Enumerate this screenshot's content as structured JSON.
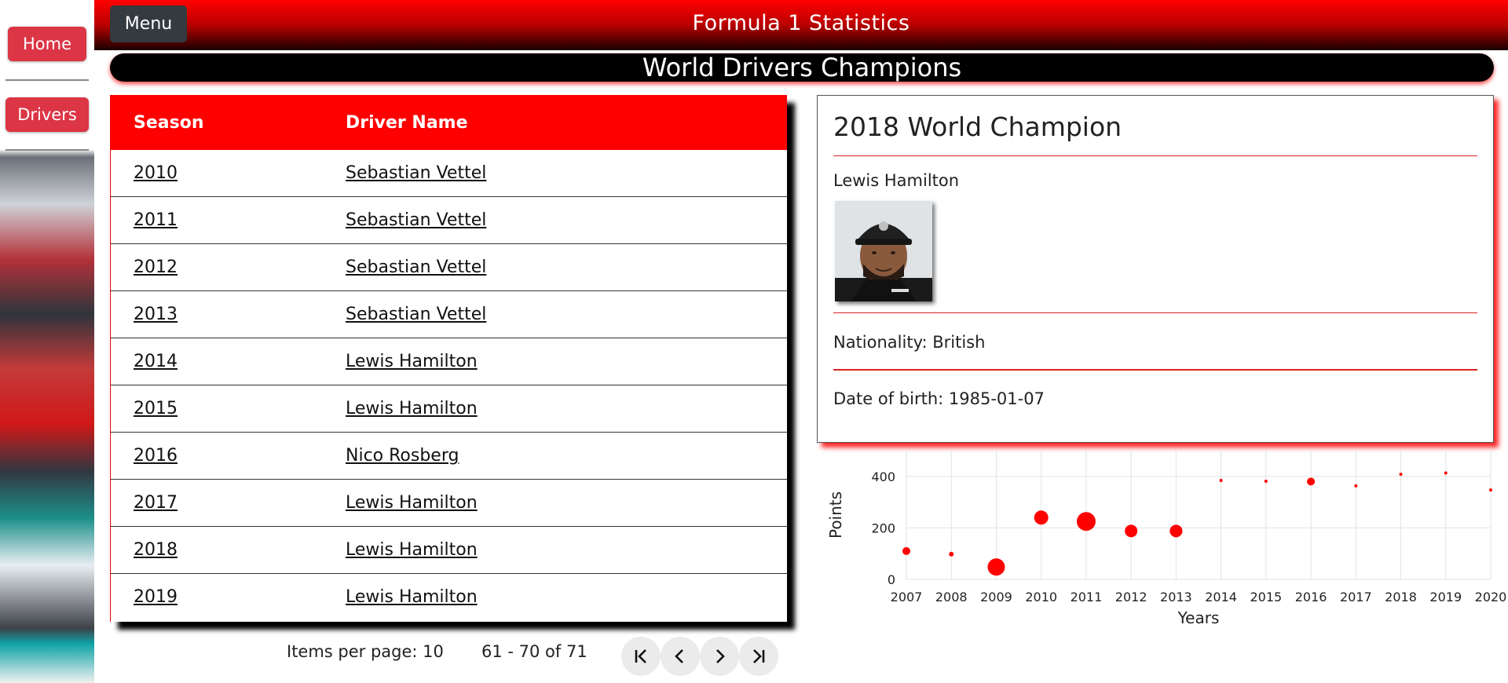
{
  "sidebar": {
    "items": [
      {
        "label": "Home"
      },
      {
        "label": "Drivers"
      }
    ]
  },
  "header": {
    "menu_label": "Menu",
    "title": "Formula 1 Statistics"
  },
  "page_title": "World Drivers Champions",
  "table": {
    "headers": [
      "Season",
      "Driver Name"
    ],
    "rows": [
      {
        "season": "2010",
        "driver": "Sebastian Vettel"
      },
      {
        "season": "2011",
        "driver": "Sebastian Vettel"
      },
      {
        "season": "2012",
        "driver": "Sebastian Vettel"
      },
      {
        "season": "2013",
        "driver": "Sebastian Vettel"
      },
      {
        "season": "2014",
        "driver": "Lewis Hamilton"
      },
      {
        "season": "2015",
        "driver": "Lewis Hamilton"
      },
      {
        "season": "2016",
        "driver": "Nico Rosberg"
      },
      {
        "season": "2017",
        "driver": "Lewis Hamilton"
      },
      {
        "season": "2018",
        "driver": "Lewis Hamilton"
      },
      {
        "season": "2019",
        "driver": "Lewis Hamilton"
      }
    ]
  },
  "paginator": {
    "items_per_page": "Items per page: 10",
    "range": "61 - 70 of 71",
    "buttons": [
      "first-page-icon",
      "previous-page-icon",
      "next-page-icon",
      "last-page-icon"
    ]
  },
  "champion": {
    "title": "2018 World Champion",
    "name": "Lewis Hamilton",
    "nationality": "Nationality: British",
    "dob": "Date of birth: 1985-01-07"
  },
  "chart_data": {
    "type": "scatter",
    "xlabel": "Years",
    "ylabel": "Points",
    "categories": [
      "2007",
      "2008",
      "2009",
      "2010",
      "2011",
      "2012",
      "2013",
      "2014",
      "2015",
      "2016",
      "2017",
      "2018",
      "2019",
      "2020"
    ],
    "y_ticks": [
      "0",
      "200",
      "400"
    ],
    "ylim": [
      0,
      500
    ],
    "grid": true,
    "color": "#ff0000",
    "points": [
      {
        "x": "2007",
        "y": 110,
        "size": 5
      },
      {
        "x": "2008",
        "y": 98,
        "size": 3
      },
      {
        "x": "2009",
        "y": 48,
        "size": 11
      },
      {
        "x": "2010",
        "y": 240,
        "size": 9
      },
      {
        "x": "2011",
        "y": 225,
        "size": 12
      },
      {
        "x": "2012",
        "y": 188,
        "size": 8
      },
      {
        "x": "2013",
        "y": 188,
        "size": 8
      },
      {
        "x": "2014",
        "y": 384,
        "size": 2
      },
      {
        "x": "2015",
        "y": 381,
        "size": 2
      },
      {
        "x": "2016",
        "y": 380,
        "size": 5
      },
      {
        "x": "2017",
        "y": 363,
        "size": 2
      },
      {
        "x": "2018",
        "y": 408,
        "size": 2
      },
      {
        "x": "2019",
        "y": 413,
        "size": 2
      },
      {
        "x": "2020",
        "y": 347,
        "size": 2
      }
    ]
  }
}
